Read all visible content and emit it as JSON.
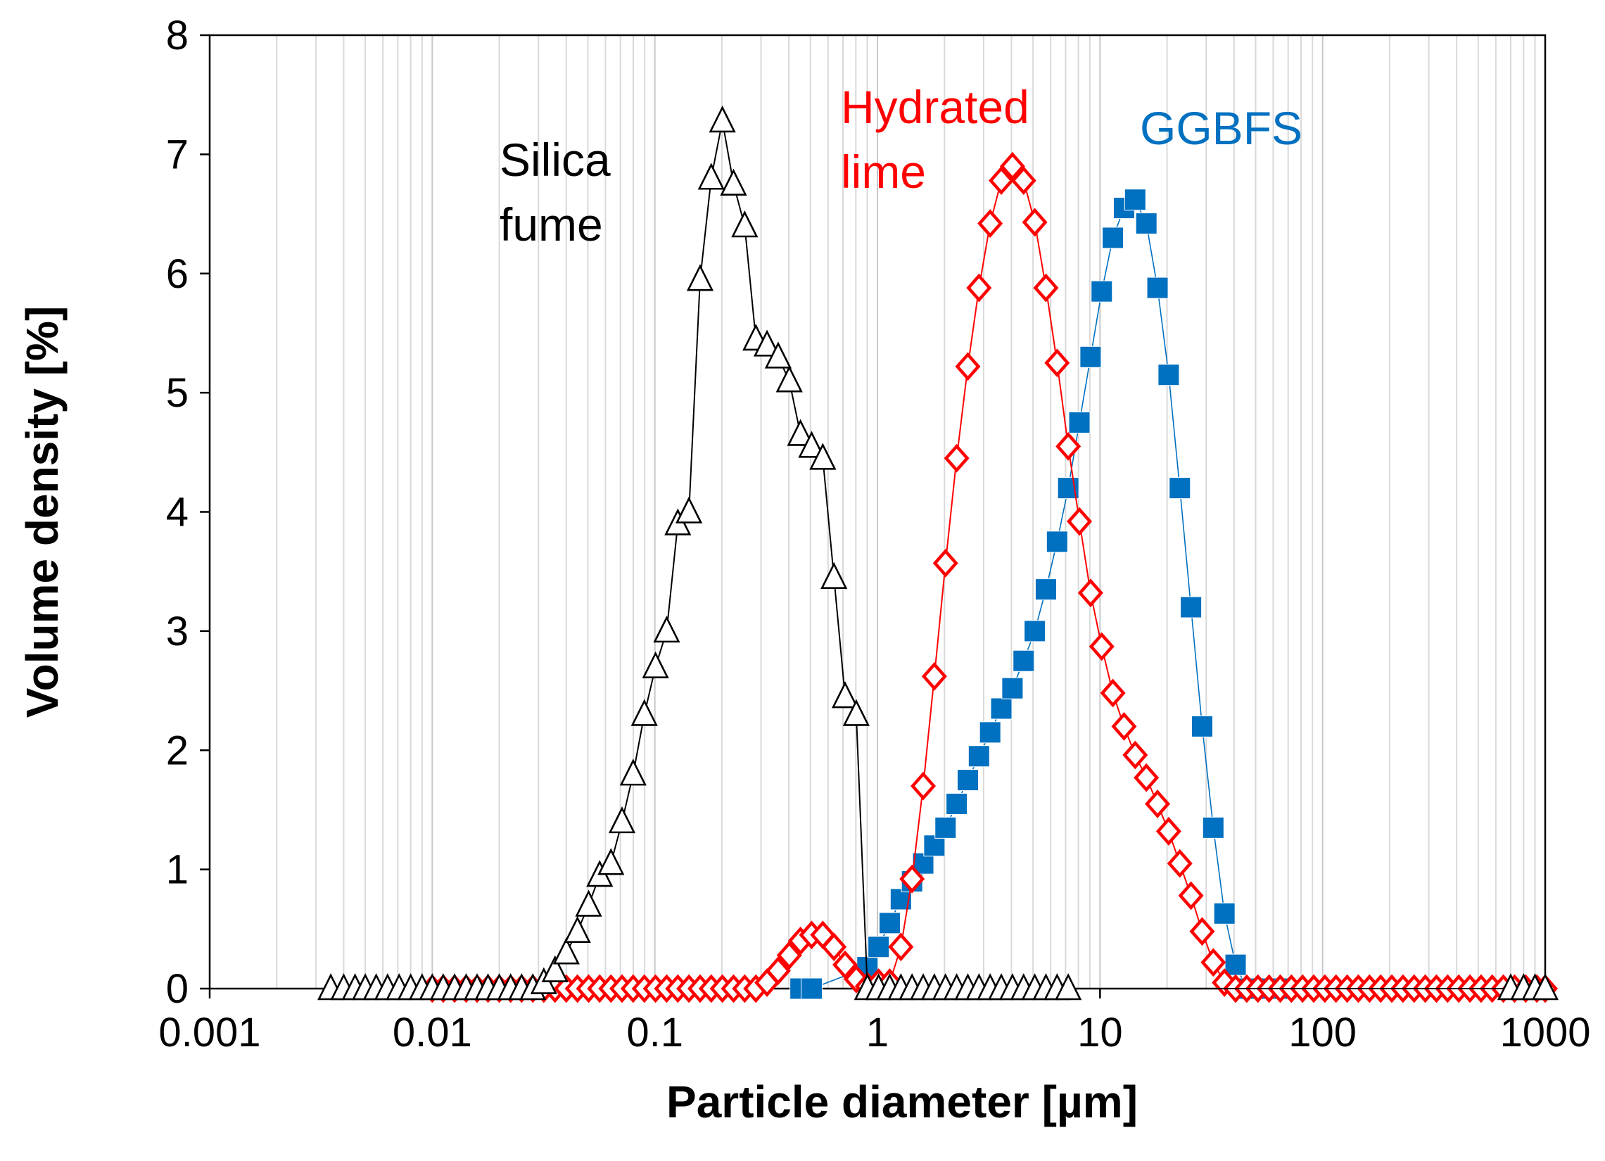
{
  "chart_data": {
    "type": "scatter",
    "xlabel": "Particle diameter [µm]",
    "ylabel": "Volume density [%]",
    "xscale": "log",
    "xlim": [
      0.001,
      1000
    ],
    "ylim": [
      0,
      8
    ],
    "xticks": [
      "0.001",
      "0.01",
      "0.1",
      "1",
      "10",
      "100",
      "1000"
    ],
    "yticks": [
      "0",
      "1",
      "2",
      "3",
      "4",
      "5",
      "6",
      "7",
      "8"
    ],
    "grid": "minor-vertical",
    "series": [
      {
        "name": "Silica fume",
        "label_lines": [
          "Silica",
          "fume"
        ],
        "color": "#000000",
        "marker": "open-triangle",
        "x": [
          0.0035,
          0.004,
          0.0045,
          0.005,
          0.0056,
          0.0063,
          0.0071,
          0.008,
          0.009,
          0.01,
          0.0112,
          0.0126,
          0.0142,
          0.0159,
          0.0178,
          0.02,
          0.0225,
          0.0252,
          0.0283,
          0.0317,
          0.0356,
          0.04,
          0.0449,
          0.0504,
          0.0565,
          0.0635,
          0.0712,
          0.0799,
          0.0897,
          0.1007,
          0.113,
          0.1268,
          0.1423,
          0.1597,
          0.1792,
          0.2011,
          0.2257,
          0.2533,
          0.2843,
          0.3191,
          0.3581,
          0.4019,
          0.4511,
          0.5063,
          0.5682,
          0.6377,
          0.7157,
          0.8033,
          0.9015,
          1.0118,
          1.1356,
          1.2746,
          1.4305,
          1.6055,
          1.8019,
          2.0224,
          2.2698,
          2.5475,
          2.8592,
          3.209,
          3.6016,
          4.0423,
          4.5368,
          5.0919,
          5.7149,
          6.4141,
          7.1988,
          700,
          800,
          900,
          1000
        ],
        "values": [
          0,
          0,
          0,
          0,
          0,
          0,
          0,
          0,
          0,
          0,
          0,
          0,
          0,
          0,
          0,
          0,
          0,
          0,
          0,
          0.05,
          0.15,
          0.3,
          0.48,
          0.7,
          0.95,
          1.05,
          1.4,
          1.8,
          2.3,
          2.7,
          3.0,
          3.9,
          4.0,
          5.95,
          6.8,
          7.28,
          6.75,
          6.4,
          5.45,
          5.4,
          5.3,
          5.1,
          4.65,
          4.55,
          4.45,
          3.45,
          2.45,
          2.3,
          0,
          0,
          0,
          0,
          0,
          0,
          0,
          0,
          0,
          0,
          0,
          0,
          0,
          0,
          0,
          0,
          0,
          0,
          0,
          0,
          0,
          0,
          0
        ]
      },
      {
        "name": "Hydrated lime",
        "label_lines": [
          "Hydrated",
          "lime"
        ],
        "color": "#ff0000",
        "marker": "open-diamond",
        "x": [
          0.01,
          0.0112,
          0.0126,
          0.0142,
          0.0159,
          0.0178,
          0.02,
          0.0225,
          0.0252,
          0.0283,
          0.0317,
          0.0356,
          0.04,
          0.0449,
          0.0504,
          0.0565,
          0.0635,
          0.0712,
          0.0799,
          0.0897,
          0.1007,
          0.113,
          0.1268,
          0.1423,
          0.1597,
          0.1792,
          0.2011,
          0.2257,
          0.2533,
          0.2843,
          0.3191,
          0.3581,
          0.4019,
          0.4511,
          0.5063,
          0.5682,
          0.6377,
          0.7157,
          0.8033,
          0.9015,
          1.0118,
          1.1356,
          1.2746,
          1.4305,
          1.6055,
          1.8019,
          2.0224,
          2.2698,
          2.5475,
          2.8592,
          3.209,
          3.6016,
          4.0423,
          4.5368,
          5.0919,
          5.7149,
          6.4141,
          7.1988,
          8.0796,
          9.0681,
          10.1775,
          11.4227,
          12.8202,
          14.3887,
          16.1492,
          18.1249,
          20.3424,
          22.8312,
          25.6245,
          28.7596,
          32.2782,
          36.2273,
          40.6595,
          45.634,
          51.2171,
          57.4832,
          64.516,
          72.4093,
          81.268,
          91.2106,
          102.37,
          114.894,
          128.951,
          144.727,
          162.434,
          182.307,
          204.611,
          229.644,
          257.74,
          289.273,
          324.664,
          364.385,
          408.965,
          459.0,
          515.154,
          578.18,
          648.917,
          728.309,
          817.415,
          917.422,
          1000
        ],
        "values": [
          0,
          0,
          0,
          0,
          0,
          0,
          0,
          0,
          0,
          0,
          0,
          0,
          0,
          0,
          0,
          0,
          0,
          0,
          0,
          0,
          0,
          0,
          0,
          0,
          0,
          0,
          0,
          0,
          0,
          0,
          0.05,
          0.15,
          0.28,
          0.4,
          0.45,
          0.45,
          0.35,
          0.2,
          0.08,
          0.02,
          0.05,
          0.05,
          0.35,
          0.92,
          1.7,
          2.62,
          3.57,
          4.45,
          5.22,
          5.88,
          6.42,
          6.78,
          6.9,
          6.78,
          6.43,
          5.88,
          5.25,
          4.55,
          3.92,
          3.32,
          2.87,
          2.48,
          2.2,
          1.96,
          1.77,
          1.55,
          1.32,
          1.05,
          0.78,
          0.48,
          0.22,
          0.05,
          0,
          0,
          0,
          0,
          0,
          0,
          0,
          0,
          0,
          0,
          0,
          0,
          0,
          0,
          0,
          0,
          0,
          0,
          0,
          0,
          0,
          0,
          0,
          0,
          0,
          0,
          0,
          0,
          0
        ]
      },
      {
        "name": "GGBFS",
        "label_lines": [
          "GGBFS"
        ],
        "color": "#0070c0",
        "marker": "filled-square",
        "x": [
          0.4511,
          0.5063,
          0.9015,
          1.0118,
          1.1356,
          1.2746,
          1.4305,
          1.6055,
          1.8019,
          2.0224,
          2.2698,
          2.5475,
          2.8592,
          3.209,
          3.6016,
          4.0423,
          4.5368,
          5.0919,
          5.7149,
          6.4141,
          7.1988,
          8.0796,
          9.0681,
          10.1775,
          11.4227,
          12.8202,
          14.3887,
          16.1492,
          18.1249,
          20.3424,
          22.8312,
          25.6245,
          28.7596,
          32.2782,
          36.2273,
          40.6595,
          45.634,
          51.2171,
          57.4832,
          64.516
        ],
        "values": [
          0,
          0,
          0.18,
          0.35,
          0.55,
          0.75,
          0.9,
          1.05,
          1.2,
          1.35,
          1.55,
          1.75,
          1.95,
          2.15,
          2.35,
          2.52,
          2.75,
          3.0,
          3.35,
          3.75,
          4.2,
          4.75,
          5.3,
          5.85,
          6.3,
          6.55,
          6.62,
          6.42,
          5.88,
          5.15,
          4.2,
          3.2,
          2.2,
          1.35,
          0.63,
          0.2,
          0,
          0,
          0,
          0
        ]
      }
    ]
  }
}
